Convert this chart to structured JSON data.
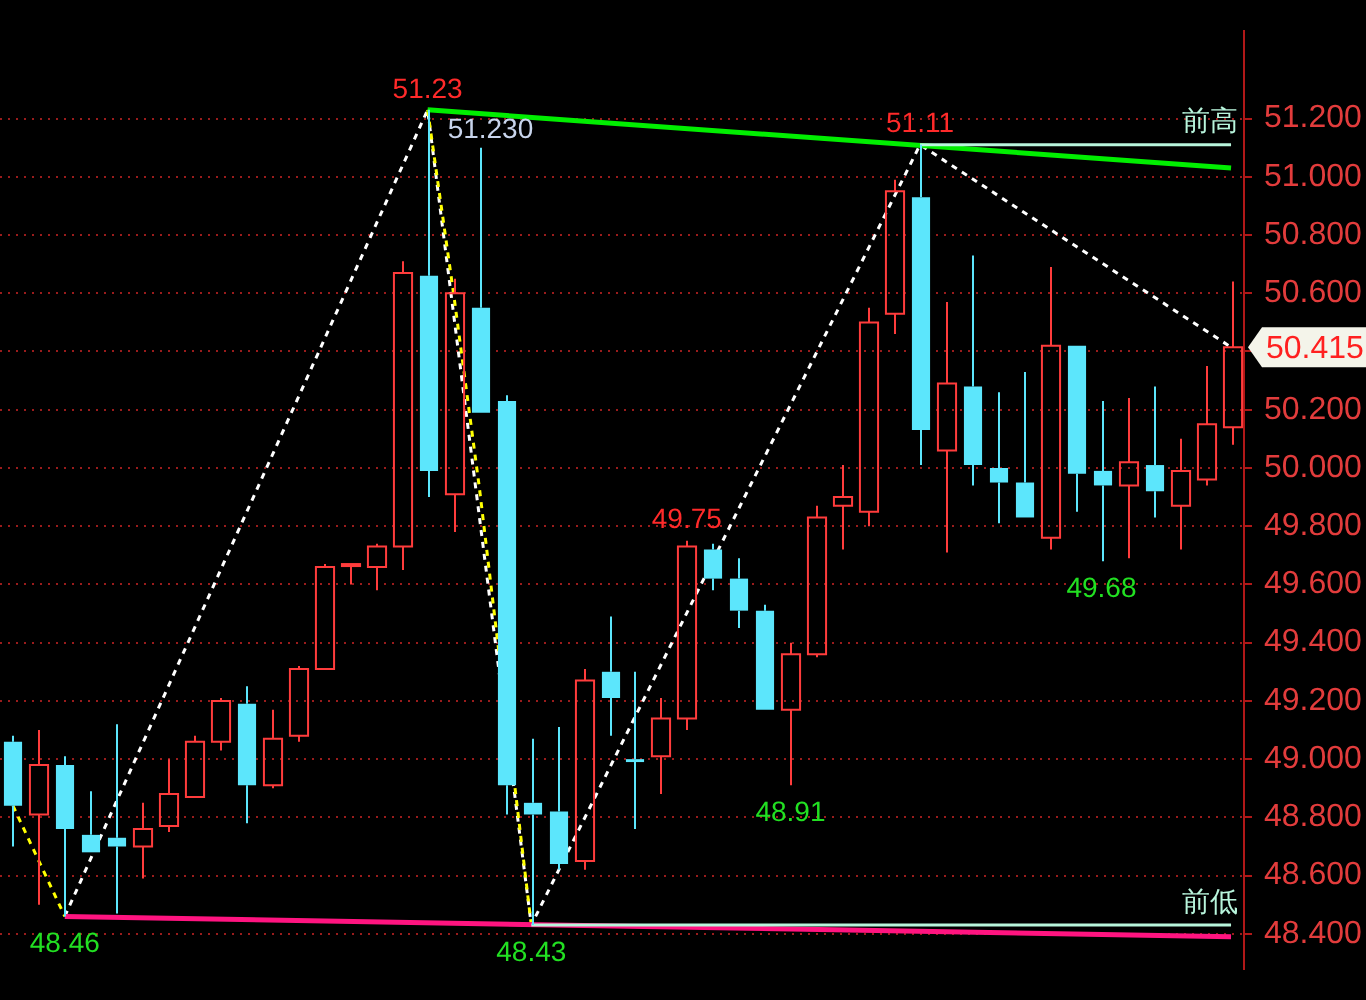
{
  "chart_data": {
    "type": "candlestick",
    "categories": [
      null,
      null,
      null,
      null,
      null,
      null,
      null,
      null,
      null,
      null,
      null,
      null,
      null,
      null,
      null,
      null,
      null,
      null,
      null,
      null,
      null,
      null,
      null,
      null,
      null,
      null,
      null,
      null,
      null,
      null,
      null,
      null,
      null,
      null,
      null,
      null,
      null,
      null,
      null,
      null,
      null,
      null,
      null,
      null,
      null,
      null,
      null,
      null
    ],
    "ohlc": [
      [
        49.06,
        49.08,
        48.7,
        48.84
      ],
      [
        48.81,
        49.1,
        48.5,
        48.98
      ],
      [
        48.98,
        49.01,
        48.46,
        48.76
      ],
      [
        48.74,
        48.89,
        48.68,
        48.68
      ],
      [
        48.73,
        49.12,
        48.47,
        48.7
      ],
      [
        48.7,
        48.85,
        48.59,
        48.76
      ],
      [
        48.77,
        49.0,
        48.75,
        48.88
      ],
      [
        48.87,
        49.08,
        48.87,
        49.06
      ],
      [
        49.06,
        49.21,
        49.03,
        49.2
      ],
      [
        49.19,
        49.25,
        48.78,
        48.91
      ],
      [
        48.91,
        49.17,
        48.9,
        49.07
      ],
      [
        49.08,
        49.32,
        49.06,
        49.31
      ],
      [
        49.31,
        49.67,
        49.31,
        49.66
      ],
      [
        49.67,
        49.67,
        49.6,
        49.67
      ],
      [
        49.66,
        49.74,
        49.58,
        49.73
      ],
      [
        49.73,
        50.71,
        49.65,
        50.67
      ],
      [
        50.66,
        51.23,
        49.9,
        49.99
      ],
      [
        49.91,
        50.65,
        49.78,
        50.6
      ],
      [
        50.55,
        51.1,
        50.19,
        50.19
      ],
      [
        50.23,
        50.25,
        48.81,
        48.91
      ],
      [
        48.85,
        49.07,
        48.43,
        48.81
      ],
      [
        48.82,
        49.11,
        48.62,
        48.64
      ],
      [
        48.65,
        49.31,
        48.62,
        49.27
      ],
      [
        49.3,
        49.49,
        49.08,
        49.21
      ],
      [
        49.0,
        49.3,
        48.76,
        48.99
      ],
      [
        49.01,
        49.21,
        48.88,
        49.14
      ],
      [
        49.14,
        49.75,
        49.1,
        49.73
      ],
      [
        49.72,
        49.74,
        49.58,
        49.62
      ],
      [
        49.62,
        49.69,
        49.45,
        49.51
      ],
      [
        49.51,
        49.53,
        49.17,
        49.17
      ],
      [
        49.17,
        49.4,
        48.91,
        49.36
      ],
      [
        49.36,
        49.87,
        49.35,
        49.83
      ],
      [
        49.87,
        50.01,
        49.72,
        49.9
      ],
      [
        49.85,
        50.55,
        49.8,
        50.5
      ],
      [
        50.53,
        50.99,
        50.46,
        50.95
      ],
      [
        50.93,
        51.11,
        50.01,
        50.13
      ],
      [
        50.06,
        50.57,
        49.71,
        50.29
      ],
      [
        50.28,
        50.73,
        49.94,
        50.01
      ],
      [
        50.0,
        50.26,
        49.81,
        49.95
      ],
      [
        49.95,
        50.33,
        49.83,
        49.83
      ],
      [
        49.76,
        50.69,
        49.72,
        50.42
      ],
      [
        50.42,
        50.42,
        49.85,
        49.98
      ],
      [
        49.99,
        50.23,
        49.68,
        49.94
      ],
      [
        49.94,
        50.24,
        49.69,
        50.02
      ],
      [
        50.01,
        50.28,
        49.83,
        49.92
      ],
      [
        49.87,
        50.1,
        49.72,
        49.99
      ],
      [
        49.96,
        50.35,
        49.94,
        50.15
      ],
      [
        50.14,
        50.64,
        50.08,
        50.415
      ]
    ],
    "series": [
      {
        "type": "line",
        "color": "#ffffff",
        "line_style": "dashed",
        "values": [
          null,
          null,
          48.46,
          null,
          null,
          null,
          null,
          null,
          null,
          null,
          null,
          null,
          null,
          null,
          null,
          null,
          51.23,
          null,
          null,
          null,
          48.43,
          null,
          null,
          null,
          null,
          null,
          null,
          null,
          null,
          null,
          null,
          null,
          null,
          null,
          null,
          51.11,
          null,
          null,
          null,
          null,
          null,
          null,
          null,
          null,
          null,
          null,
          null,
          50.415
        ]
      },
      {
        "type": "line",
        "color": "#ffff00",
        "line_style": "dashed",
        "values": [
          48.84,
          48.65,
          48.46,
          null,
          null,
          null,
          null,
          null,
          null,
          null,
          null,
          null,
          null,
          null,
          null,
          null,
          null,
          null,
          null,
          null,
          null,
          null,
          null,
          null,
          null,
          null,
          null,
          null,
          null,
          null,
          null,
          null,
          null,
          null,
          null,
          null,
          null,
          null,
          null,
          null,
          null,
          null,
          null,
          null,
          null,
          null,
          null,
          null
        ]
      },
      {
        "type": "line",
        "color": "#ffff00",
        "line_style": "dashed",
        "values": [
          null,
          null,
          null,
          null,
          null,
          null,
          null,
          null,
          null,
          null,
          null,
          null,
          null,
          null,
          null,
          null,
          51.23,
          50.6,
          49.93,
          null,
          48.43,
          null,
          null,
          null,
          null,
          null,
          null,
          null,
          null,
          null,
          null,
          null,
          null,
          null,
          null,
          null,
          null,
          null,
          null,
          null,
          null,
          null,
          null,
          null,
          null,
          null,
          null,
          null
        ]
      },
      {
        "type": "line",
        "color": "#00ee00",
        "line_style": "solid",
        "values": [
          null,
          null,
          null,
          null,
          null,
          null,
          null,
          null,
          null,
          null,
          null,
          null,
          null,
          null,
          null,
          null,
          51.23,
          null,
          null,
          null,
          null,
          null,
          null,
          null,
          null,
          null,
          null,
          null,
          null,
          null,
          null,
          null,
          null,
          null,
          null,
          null,
          null,
          null,
          null,
          null,
          null,
          null,
          null,
          null,
          null,
          null,
          null,
          51.03
        ]
      },
      {
        "type": "line",
        "color": "#ff1480",
        "line_style": "solid",
        "values": [
          null,
          null,
          48.46,
          null,
          null,
          null,
          null,
          null,
          null,
          null,
          null,
          null,
          null,
          null,
          null,
          null,
          null,
          null,
          null,
          null,
          null,
          null,
          null,
          null,
          null,
          null,
          null,
          null,
          null,
          null,
          null,
          null,
          null,
          null,
          null,
          null,
          null,
          null,
          null,
          null,
          null,
          null,
          null,
          null,
          null,
          null,
          null,
          48.39
        ]
      },
      {
        "type": "line",
        "name": "前高",
        "color": "#b8f5dc",
        "line_style": "solid",
        "values": [
          null,
          null,
          null,
          null,
          null,
          null,
          null,
          null,
          null,
          null,
          null,
          null,
          null,
          null,
          null,
          null,
          null,
          null,
          null,
          null,
          null,
          null,
          null,
          null,
          null,
          null,
          null,
          null,
          null,
          null,
          null,
          null,
          null,
          null,
          null,
          51.11,
          51.11,
          51.11,
          51.11,
          51.11,
          51.11,
          51.11,
          51.11,
          51.11,
          51.11,
          51.11,
          51.11,
          51.11
        ]
      },
      {
        "type": "line",
        "name": "前低",
        "color": "#b8f5dc",
        "line_style": "solid",
        "values": [
          null,
          null,
          null,
          null,
          null,
          null,
          null,
          null,
          null,
          null,
          null,
          null,
          null,
          null,
          null,
          null,
          null,
          null,
          null,
          null,
          48.43,
          48.43,
          48.43,
          48.43,
          48.43,
          48.43,
          48.43,
          48.43,
          48.43,
          48.43,
          48.43,
          48.43,
          48.43,
          48.43,
          48.43,
          48.43,
          48.43,
          48.43,
          48.43,
          48.43,
          48.43,
          48.43,
          48.43,
          48.43,
          48.43,
          48.43,
          48.43,
          48.43
        ]
      }
    ],
    "ylim": [
      48.28,
      51.5
    ],
    "yticks": [
      {
        "value": 48.4,
        "label": "48.400"
      },
      {
        "value": 48.6,
        "label": "48.600"
      },
      {
        "value": 48.8,
        "label": "48.800"
      },
      {
        "value": 49.0,
        "label": "49.000"
      },
      {
        "value": 49.2,
        "label": "49.200"
      },
      {
        "value": 49.4,
        "label": "49.400"
      },
      {
        "value": 49.6,
        "label": "49.600"
      },
      {
        "value": 49.8,
        "label": "49.800"
      },
      {
        "value": 50.0,
        "label": "50.000"
      },
      {
        "value": 50.2,
        "label": "50.200"
      },
      {
        "value": 50.4,
        "label": null
      },
      {
        "value": 50.6,
        "label": "50.600"
      },
      {
        "value": 50.8,
        "label": "50.800"
      },
      {
        "value": 51.0,
        "label": "51.000"
      },
      {
        "value": 51.2,
        "label": "51.200"
      }
    ],
    "grid": "y",
    "tick_labels": "y",
    "annotations": [
      {
        "text": "51.23",
        "y": 51.23
      },
      {
        "text": "51.11",
        "y": 51.11
      },
      {
        "text": "48.46",
        "y": 48.46
      },
      {
        "text": "48.43",
        "y": 48.43
      },
      "49.75",
      "48.91",
      "49.68",
      "51.230",
      "50.415"
    ]
  }
}
